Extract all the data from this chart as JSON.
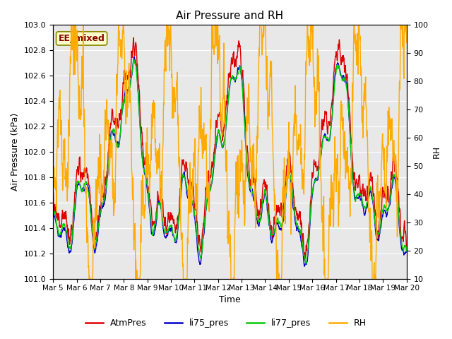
{
  "title": "Air Pressure and RH",
  "xlabel": "Time",
  "ylabel_left": "Air Pressure (kPa)",
  "ylabel_right": "RH",
  "ylim_left": [
    101.0,
    103.0
  ],
  "ylim_right": [
    10,
    100
  ],
  "yticks_left": [
    101.0,
    101.2,
    101.4,
    101.6,
    101.8,
    102.0,
    102.2,
    102.4,
    102.6,
    102.8,
    103.0
  ],
  "yticks_right": [
    10,
    20,
    30,
    40,
    50,
    60,
    70,
    80,
    90,
    100
  ],
  "xtick_labels": [
    "Mar 5",
    "Mar 6",
    "Mar 7",
    "Mar 8",
    "Mar 9",
    "Mar 10",
    "Mar 11",
    "Mar 12",
    "Mar 13",
    "Mar 14",
    "Mar 15",
    "Mar 16",
    "Mar 17",
    "Mar 18",
    "Mar 19",
    "Mar 20"
  ],
  "color_atm": "#dd0000",
  "color_li75": "#0000cc",
  "color_li77": "#00cc00",
  "color_rh": "#ffaa00",
  "linewidth_pres": 1.0,
  "linewidth_rh": 1.0,
  "bg_color": "#e8e8e8",
  "annotation_text": "EE_mixed",
  "annotation_bg": "#ffffcc",
  "annotation_border": "#888800",
  "legend_labels": [
    "AtmPres",
    "li75_pres",
    "li77_pres",
    "RH"
  ],
  "legend_colors": [
    "#dd0000",
    "#0000cc",
    "#00cc00",
    "#ffaa00"
  ]
}
